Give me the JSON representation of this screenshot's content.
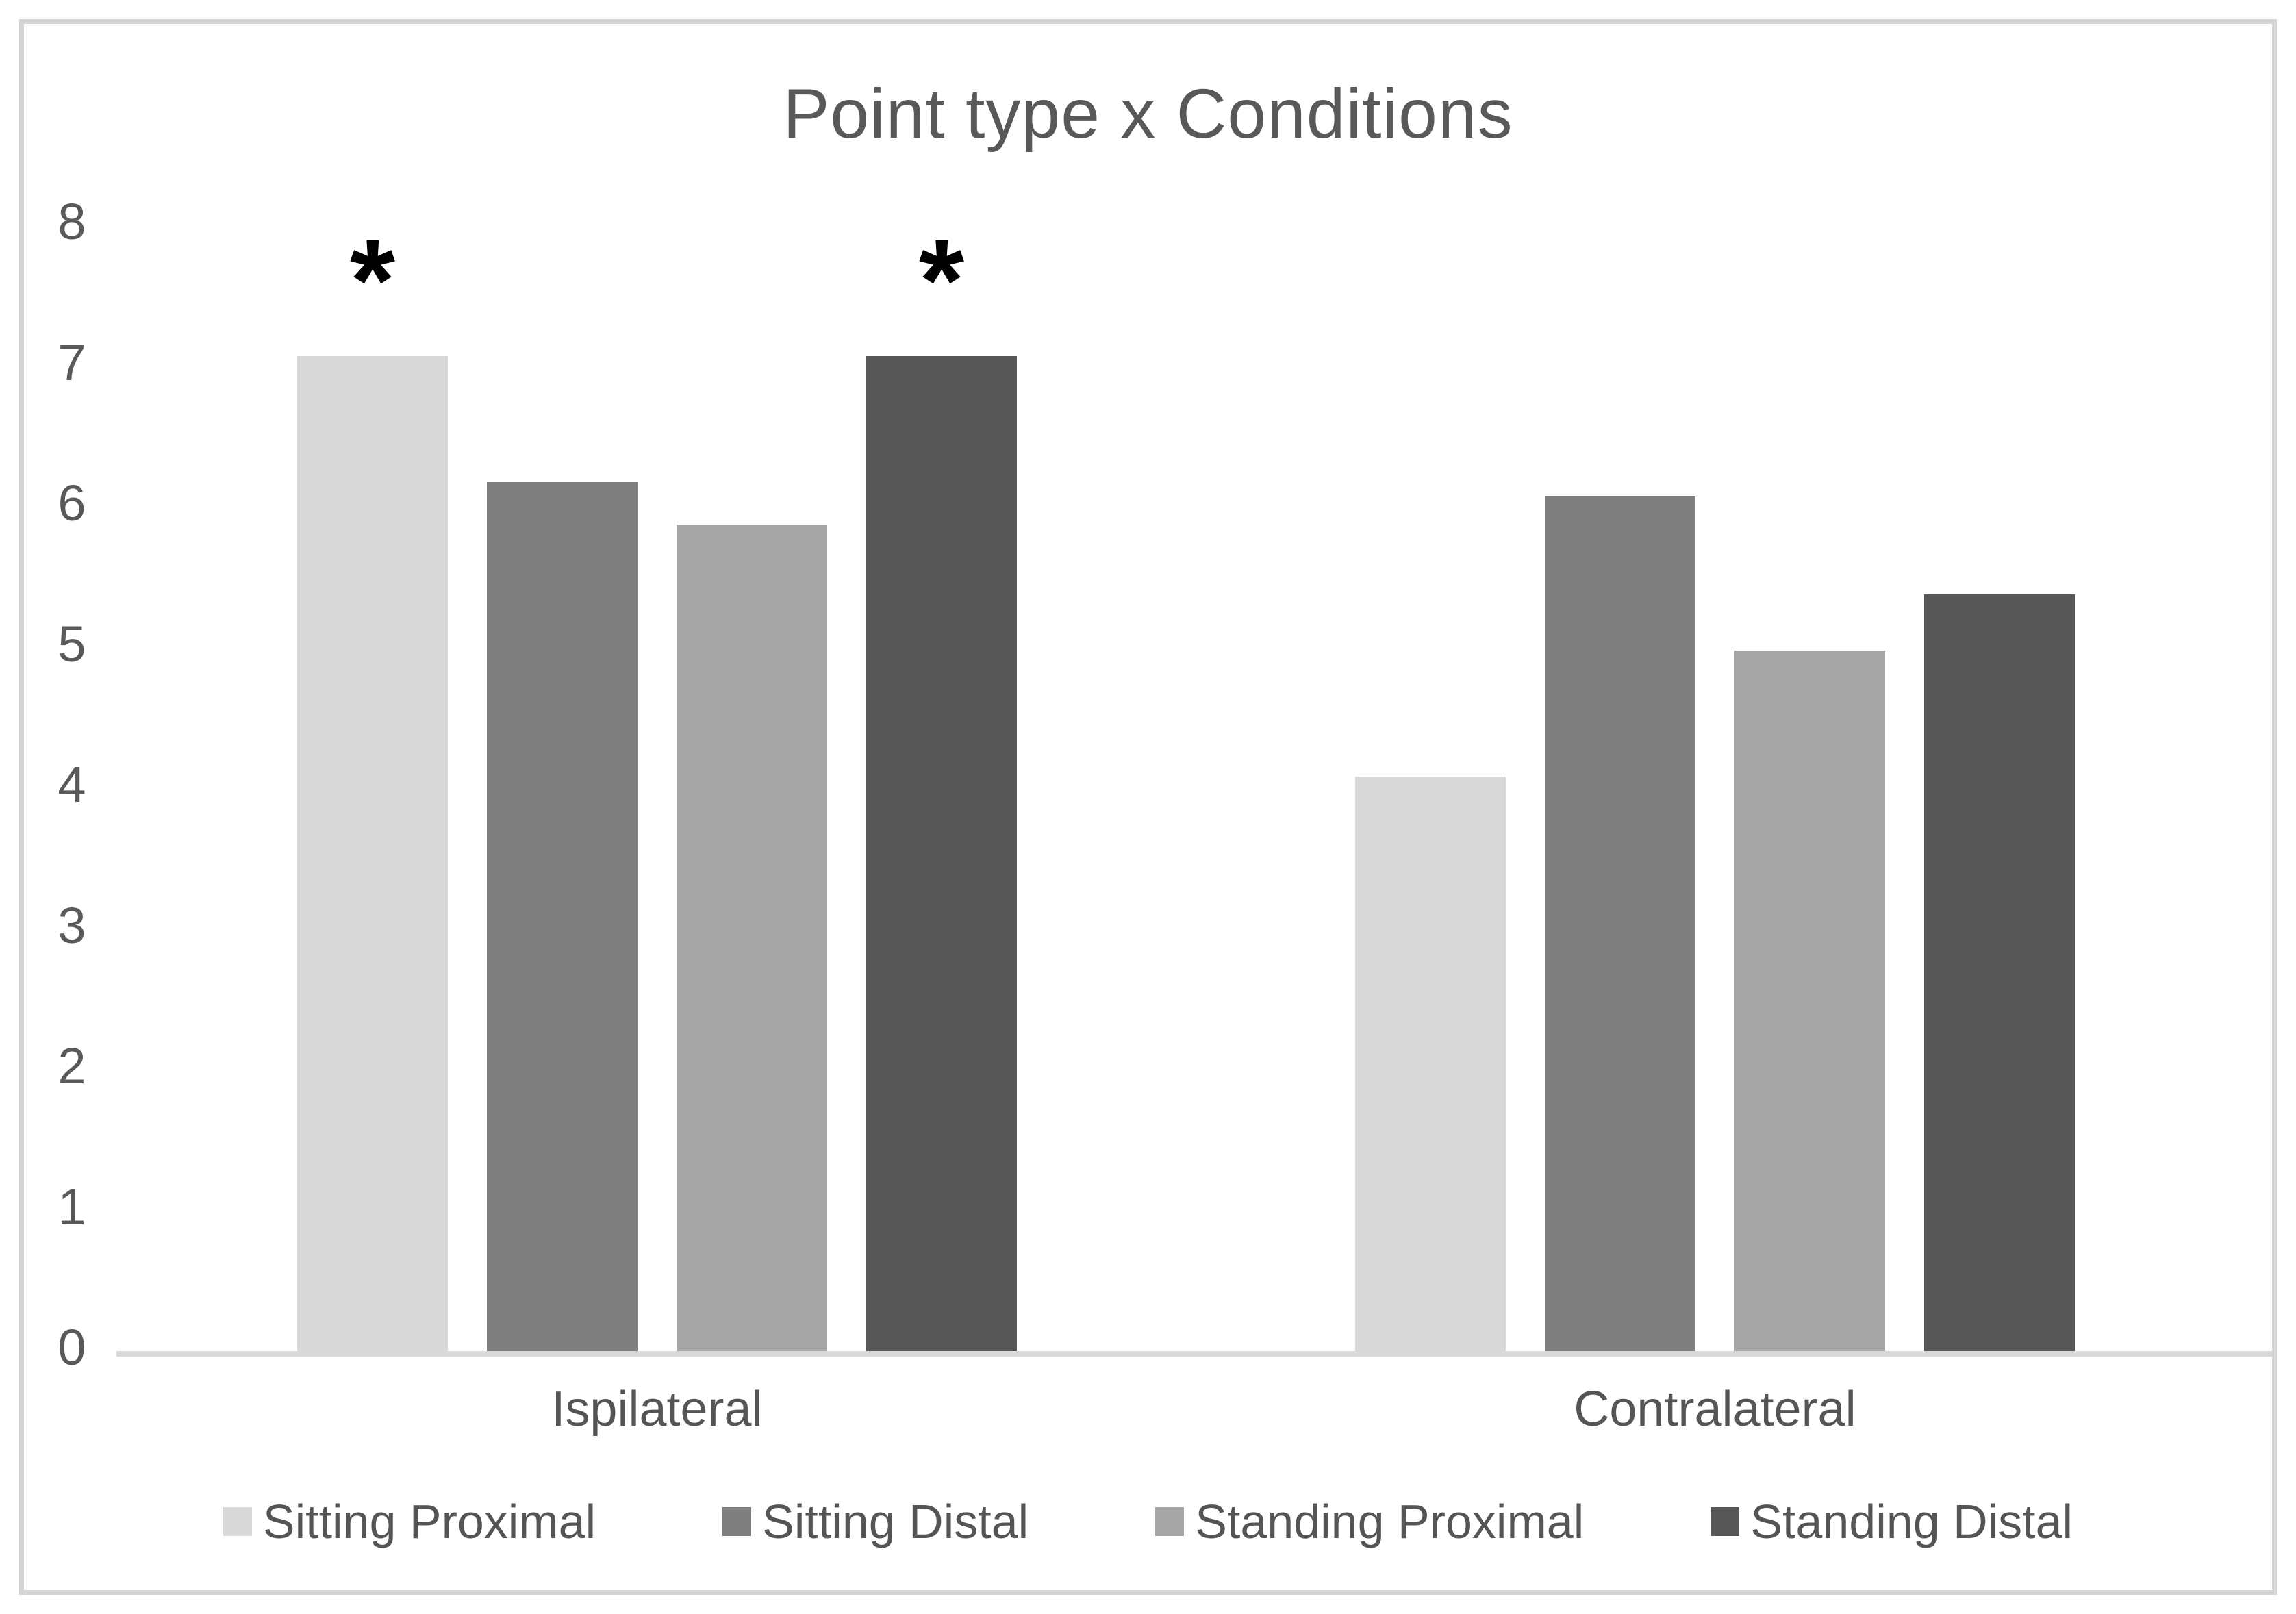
{
  "chart": {
    "title": "Point type x Conditions"
  },
  "chart_data": {
    "type": "bar",
    "title": "Point type x Conditions",
    "categories": [
      "Ispilateral",
      "Contralateral"
    ],
    "series": [
      {
        "name": "Sitting Proximal",
        "color": "#d9d9d9",
        "values": [
          7.1,
          4.1
        ]
      },
      {
        "name": "Sitting Distal",
        "color": "#7f7f7f",
        "values": [
          6.2,
          6.1
        ]
      },
      {
        "name": "Standing Proximal",
        "color": "#a6a6a6",
        "values": [
          5.9,
          5.0
        ]
      },
      {
        "name": "Standing Distal",
        "color": "#575757",
        "values": [
          7.1,
          5.4
        ]
      }
    ],
    "ylim": [
      0,
      8
    ],
    "yticks": [
      8,
      7,
      6,
      5,
      4,
      3,
      2,
      1,
      0
    ],
    "grid": false,
    "legend_position": "bottom",
    "annotations": [
      {
        "symbol": "*",
        "category_index": 0,
        "series_index": 0
      },
      {
        "symbol": "*",
        "category_index": 0,
        "series_index": 3
      }
    ],
    "axis_line_color": "#d9d9d9",
    "frame_color": "#d4d4d4"
  }
}
